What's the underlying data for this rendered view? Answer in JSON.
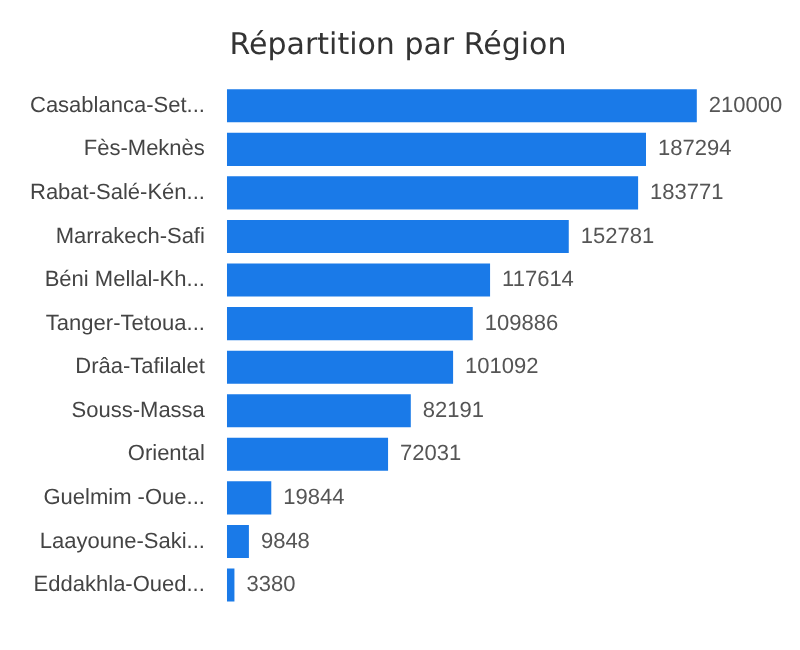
{
  "chart_data": {
    "type": "bar",
    "orientation": "horizontal",
    "title": "Répartition par Région",
    "categories": [
      "Casablanca-Set...",
      "Fès-Meknès",
      "Rabat-Salé-Kén...",
      "Marrakech-Safi",
      "Béni Mellal-Kh...",
      "Tanger-Tetoua...",
      "Drâa-Tafilalet",
      "Souss-Massa",
      "Oriental",
      "Guelmim -Oue...",
      "Laayoune-Saki...",
      "Eddakhla-Oued..."
    ],
    "values": [
      210000,
      187294,
      183771,
      152781,
      117614,
      109886,
      101092,
      82191,
      72031,
      19844,
      9848,
      3380
    ],
    "color": "#1a7ae8",
    "data_labels": true
  }
}
